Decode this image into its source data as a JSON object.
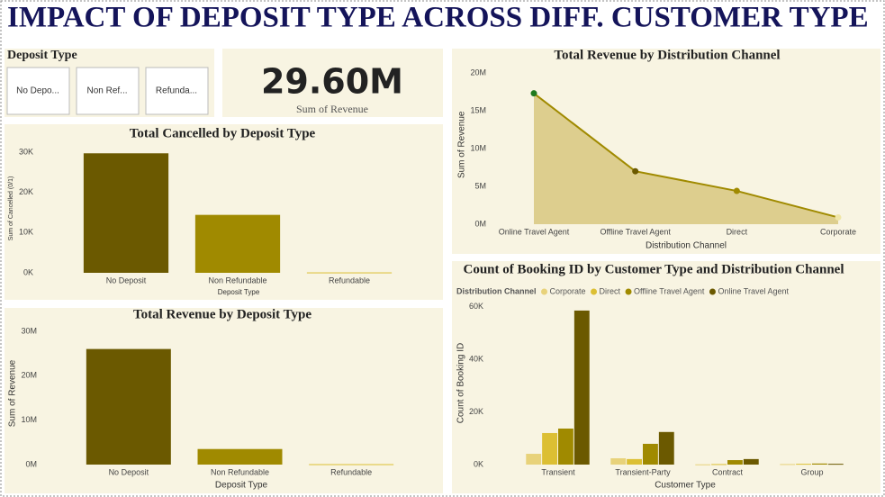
{
  "title": "IMPACT OF DEPOSIT TYPE ACROSS DIFF. CUSTOMER TYPE",
  "slicer": {
    "title": "Deposit Type",
    "items": [
      "No Depo...",
      "Non Ref...",
      "Refunda..."
    ]
  },
  "card": {
    "value": "29.60M",
    "label": "Sum of Revenue"
  },
  "chart_data": [
    {
      "type": "bar",
      "title": "Total Cancelled by Deposit Type",
      "x_label": "Deposit Type",
      "y_label": "Sum of Cancelled (0/1)",
      "categories": [
        "No Deposit",
        "Non Refundable",
        "Refundable"
      ],
      "values": [
        29700,
        14400,
        100
      ],
      "color": "#6b5900",
      "colors": [
        "#6b5900",
        "#a08a00",
        "#dcbf33"
      ],
      "ylim": [
        0,
        32000
      ],
      "yticks": [
        {
          "value": 0,
          "label": "0K"
        },
        {
          "value": 10000,
          "label": "10K"
        },
        {
          "value": 20000,
          "label": "20K"
        },
        {
          "value": 30000,
          "label": "30K"
        }
      ],
      "grid": false
    },
    {
      "type": "bar",
      "title": "Total Revenue by Deposit Type",
      "x_label": "Deposit Type",
      "y_label": "Sum of Revenue",
      "categories": [
        "No Deposit",
        "Non Refundable",
        "Refundable"
      ],
      "values": [
        26000000,
        3500000,
        100000
      ],
      "color": "#6b5900",
      "colors": [
        "#6b5900",
        "#a08a00",
        "#dcbf33"
      ],
      "ylim": [
        0,
        32000000
      ],
      "yticks": [
        {
          "value": 0,
          "label": "0M"
        },
        {
          "value": 10000000,
          "label": "10M"
        },
        {
          "value": 20000000,
          "label": "20M"
        },
        {
          "value": 30000000,
          "label": "30M"
        }
      ],
      "grid": false
    },
    {
      "type": "area",
      "title": "Total Revenue by Distribution Channel",
      "x_label": "Distribution Channel",
      "y_label": "Sum of Revenue",
      "categories": [
        "Online Travel Agent",
        "Offline Travel Agent",
        "Direct",
        "Corporate"
      ],
      "values": [
        17300000,
        7000000,
        4400000,
        900000
      ],
      "color": "#a08a00",
      "fill": "#d8c77f",
      "marker_colors": [
        "#1f7a1f",
        "#6b5900",
        "#a08a00",
        "#f0e6a8"
      ],
      "ylim": [
        0,
        21000000
      ],
      "yticks": [
        {
          "value": 0,
          "label": "0M"
        },
        {
          "value": 5000000,
          "label": "5M"
        },
        {
          "value": 10000000,
          "label": "10M"
        },
        {
          "value": 15000000,
          "label": "15M"
        },
        {
          "value": 20000000,
          "label": "20M"
        }
      ],
      "grid": false
    },
    {
      "type": "grouped_bar",
      "title": "Count of Booking ID by Customer Type and Distribution Channel",
      "x_label": "Customer Type",
      "y_label": "Count of Booking ID",
      "legend_title": "Distribution Channel",
      "legend": "top",
      "categories": [
        "Transient",
        "Transient-Party",
        "Contract",
        "Group"
      ],
      "series": [
        {
          "name": "Corporate",
          "color": "#e8d27a",
          "values": [
            4100,
            2400,
            100,
            200
          ]
        },
        {
          "name": "Direct",
          "color": "#dcbf33",
          "values": [
            12000,
            2100,
            200,
            300
          ]
        },
        {
          "name": "Offline Travel Agent",
          "color": "#a08a00",
          "values": [
            13700,
            7900,
            1700,
            400
          ]
        },
        {
          "name": "Online Travel Agent",
          "color": "#6b5900",
          "values": [
            58600,
            12400,
            2100,
            300
          ]
        }
      ],
      "ylim": [
        0,
        62000
      ],
      "yticks": [
        {
          "value": 0,
          "label": "0K"
        },
        {
          "value": 20000,
          "label": "20K"
        },
        {
          "value": 40000,
          "label": "40K"
        },
        {
          "value": 60000,
          "label": "60K"
        }
      ],
      "grid": false
    }
  ]
}
